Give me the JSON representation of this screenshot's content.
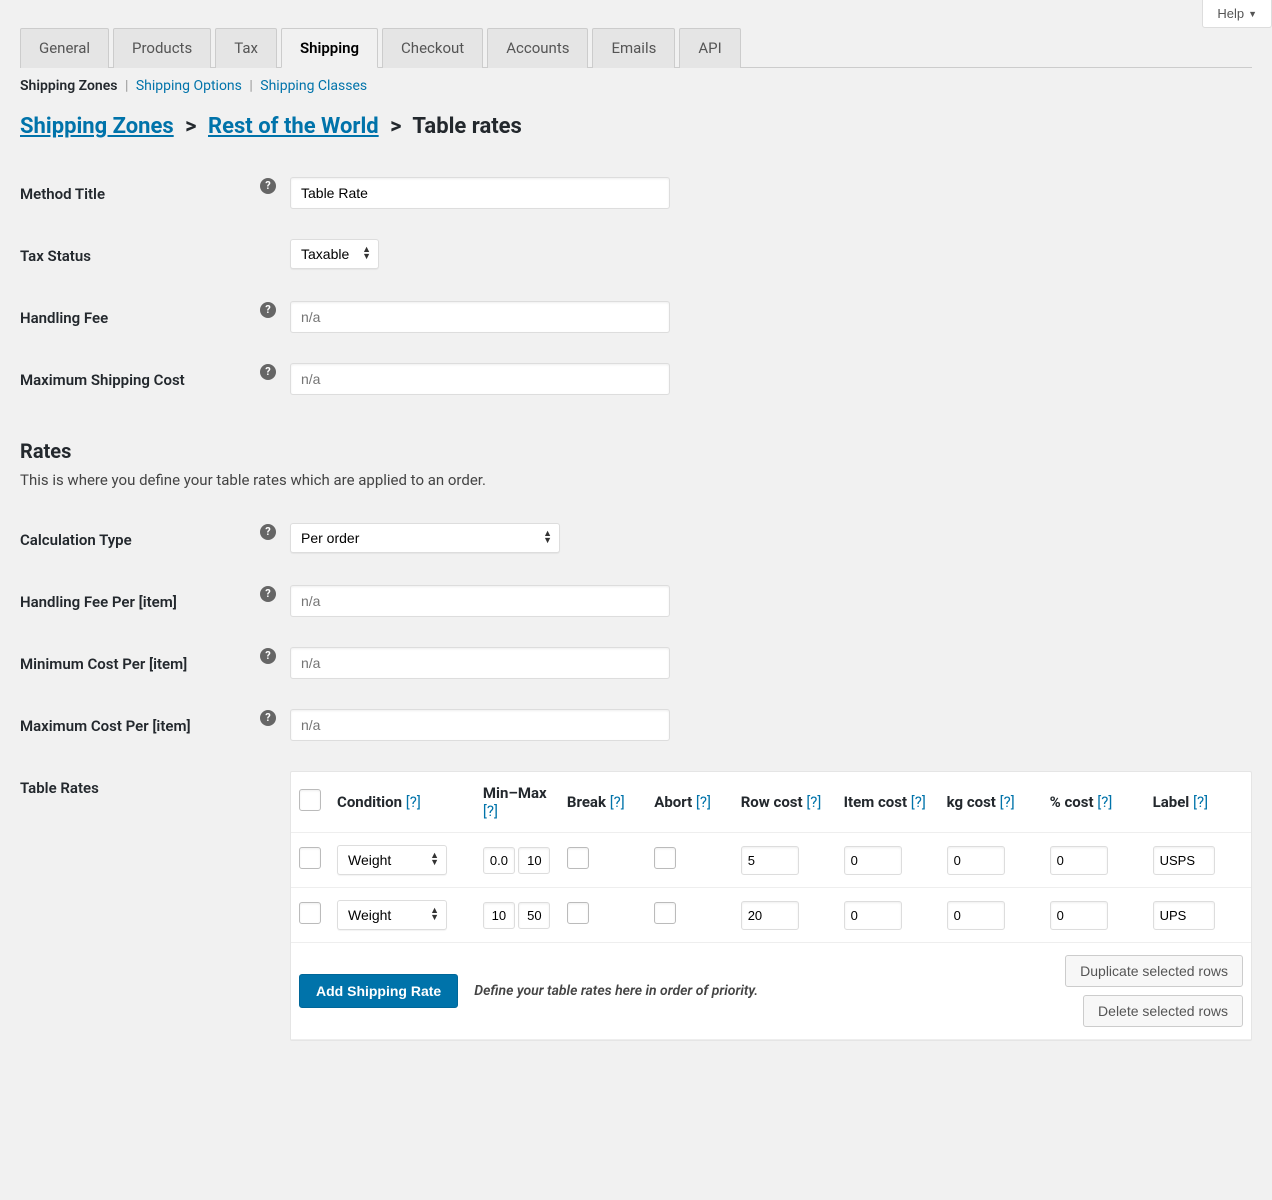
{
  "help_label": "Help",
  "nav_tabs": {
    "general": "General",
    "products": "Products",
    "tax": "Tax",
    "shipping": "Shipping",
    "checkout": "Checkout",
    "accounts": "Accounts",
    "emails": "Emails",
    "api": "API"
  },
  "sub_nav": {
    "zones": "Shipping Zones",
    "options": "Shipping Options",
    "classes": "Shipping Classes"
  },
  "breadcrumb": {
    "zones": "Shipping Zones",
    "zone": "Rest of the World",
    "method": "Table rates"
  },
  "fields": {
    "method_title": {
      "label": "Method Title",
      "value": "Table Rate"
    },
    "tax_status": {
      "label": "Tax Status",
      "value": "Taxable"
    },
    "handling_fee": {
      "label": "Handling Fee",
      "placeholder": "n/a"
    },
    "max_shipping_cost": {
      "label": "Maximum Shipping Cost",
      "placeholder": "n/a"
    }
  },
  "rates_section": {
    "title": "Rates",
    "desc": "This is where you define your table rates which are applied to an order.",
    "calculation_type": {
      "label": "Calculation Type",
      "value": "Per order"
    },
    "handling_fee_item": {
      "label": "Handling Fee Per [item]",
      "placeholder": "n/a"
    },
    "min_cost_item": {
      "label": "Minimum Cost Per [item]",
      "placeholder": "n/a"
    },
    "max_cost_item": {
      "label": "Maximum Cost Per [item]",
      "placeholder": "n/a"
    },
    "table_label": "Table Rates"
  },
  "table": {
    "headers": {
      "condition": "Condition",
      "minmax": "Min–Max",
      "break": "Break",
      "abort": "Abort",
      "row_cost": "Row cost",
      "item_cost": "Item cost",
      "kg_cost": "kg cost",
      "pct_cost": "% cost",
      "label": "Label"
    },
    "rows": [
      {
        "condition": "Weight",
        "min": "0.0",
        "max": "10",
        "row_cost": "5",
        "item_cost": "0",
        "kg_cost": "0",
        "pct_cost": "0",
        "label": "USPS"
      },
      {
        "condition": "Weight",
        "min": "10",
        "max": "50",
        "row_cost": "20",
        "item_cost": "0",
        "kg_cost": "0",
        "pct_cost": "0",
        "label": "UPS"
      }
    ],
    "footer": {
      "add": "Add Shipping Rate",
      "note": "Define your table rates here in order of priority.",
      "delete": "Delete selected rows",
      "duplicate": "Duplicate selected rows"
    }
  },
  "help_q": "[?]"
}
